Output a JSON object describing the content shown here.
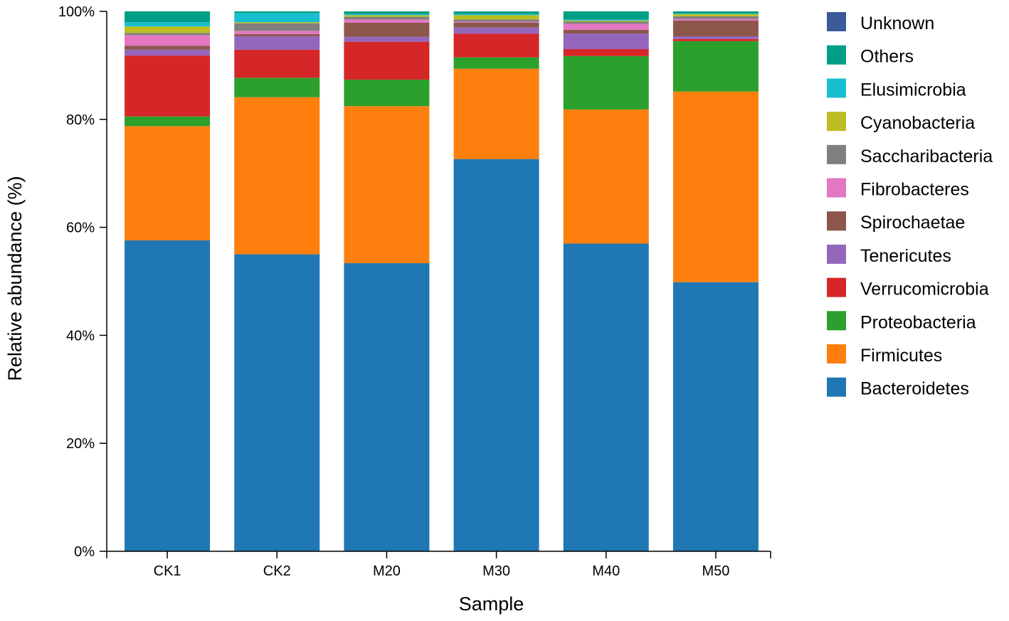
{
  "chart_data": {
    "type": "bar",
    "stacked": true,
    "title": "",
    "xlabel": "Sample",
    "ylabel": "Relative abundance (%)",
    "ylim": [
      0,
      100
    ],
    "y_ticks": [
      0,
      20,
      40,
      60,
      80,
      100
    ],
    "y_tick_labels": [
      "0%",
      "20%",
      "40%",
      "60%",
      "80%",
      "100%"
    ],
    "categories": [
      "CK1",
      "CK2",
      "M20",
      "M30",
      "M40",
      "M50"
    ],
    "series": [
      {
        "name": "Bacteroidetes",
        "color": "#1f77b4",
        "values": [
          57.7,
          55.0,
          53.2,
          72.5,
          57.1,
          49.7
        ]
      },
      {
        "name": "Firmicutes",
        "color": "#ff7f0e",
        "values": [
          21.2,
          29.1,
          29.0,
          16.7,
          24.9,
          35.2
        ]
      },
      {
        "name": "Proteobacteria",
        "color": "#2ca02c",
        "values": [
          1.8,
          3.6,
          4.9,
          2.1,
          9.9,
          9.3
        ]
      },
      {
        "name": "Verrucomicrobia",
        "color": "#d62728",
        "values": [
          11.3,
          5.2,
          7.0,
          4.4,
          1.3,
          0.4
        ]
      },
      {
        "name": "Tenericutes",
        "color": "#9467bd",
        "values": [
          1.1,
          2.5,
          0.9,
          1.1,
          2.9,
          0.5
        ]
      },
      {
        "name": "Spirochaetae",
        "color": "#8c564b",
        "values": [
          0.7,
          0.4,
          2.6,
          0.9,
          0.7,
          2.9
        ]
      },
      {
        "name": "Fibrobacteres",
        "color": "#e377c2",
        "values": [
          2.0,
          0.6,
          0.6,
          0.2,
          1.1,
          0.3
        ]
      },
      {
        "name": "Saccharibacteria",
        "color": "#7f7f7f",
        "values": [
          0.4,
          1.4,
          0.5,
          0.4,
          0.4,
          0.5
        ]
      },
      {
        "name": "Cyanobacteria",
        "color": "#bcbd22",
        "values": [
          1.2,
          0.2,
          0.3,
          0.8,
          0.2,
          0.4
        ]
      },
      {
        "name": "Elusimicrobia",
        "color": "#17becf",
        "values": [
          0.8,
          1.7,
          0.2,
          0.2,
          0.2,
          0.1
        ]
      },
      {
        "name": "Others",
        "color": "#009e84",
        "values": [
          2.0,
          0.3,
          0.5,
          0.5,
          1.5,
          0.4
        ]
      },
      {
        "name": "Unknown",
        "color": "#3a5a9a",
        "values": [
          0.0,
          0.0,
          0.0,
          0.0,
          0.0,
          0.0
        ]
      }
    ],
    "legend": {
      "placement": "right",
      "order": [
        "Unknown",
        "Others",
        "Elusimicrobia",
        "Cyanobacteria",
        "Saccharibacteria",
        "Fibrobacteres",
        "Spirochaetae",
        "Tenericutes",
        "Verrucomicrobia",
        "Proteobacteria",
        "Firmicutes",
        "Bacteroidetes"
      ]
    },
    "grid": false
  }
}
